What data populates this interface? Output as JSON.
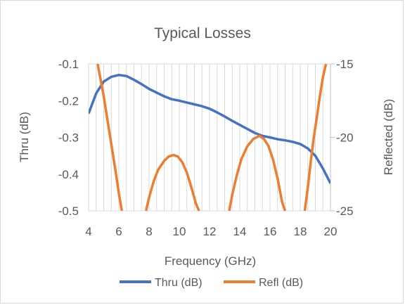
{
  "chart_data": {
    "type": "line",
    "title": "Typical Losses",
    "xlabel": "Frequency (GHz)",
    "ylabel": "Thru (dB)",
    "y2label": "Reflected (dB)",
    "xlim": [
      4,
      20
    ],
    "ylim": [
      -0.5,
      -0.1
    ],
    "y2lim": [
      -25,
      -15
    ],
    "x_ticks": [
      "4",
      "6",
      "8",
      "10",
      "12",
      "14",
      "16",
      "18",
      "20"
    ],
    "y_ticks": [
      "-0.1",
      "-0.2",
      "-0.3",
      "-0.4",
      "-0.5"
    ],
    "y2_ticks": [
      "-15",
      "-20",
      "-25"
    ],
    "grid": "vertical",
    "legend_position": "bottom",
    "series": [
      {
        "name": "Thru (dB)",
        "axis": "left",
        "color": "#4472c4",
        "x": [
          4.0,
          4.5,
          5.0,
          5.5,
          6.0,
          6.5,
          7.0,
          7.5,
          8.0,
          8.5,
          9.0,
          9.5,
          10.0,
          10.5,
          11.0,
          11.5,
          12.0,
          12.5,
          13.0,
          13.5,
          14.0,
          14.5,
          15.0,
          15.5,
          16.0,
          16.5,
          17.0,
          17.5,
          18.0,
          18.5,
          19.0,
          19.5,
          20.0
        ],
        "values": [
          -0.235,
          -0.18,
          -0.148,
          -0.135,
          -0.13,
          -0.133,
          -0.143,
          -0.155,
          -0.168,
          -0.178,
          -0.188,
          -0.196,
          -0.2,
          -0.205,
          -0.21,
          -0.215,
          -0.222,
          -0.232,
          -0.243,
          -0.255,
          -0.266,
          -0.277,
          -0.288,
          -0.296,
          -0.3,
          -0.305,
          -0.308,
          -0.312,
          -0.318,
          -0.33,
          -0.35,
          -0.385,
          -0.425
        ]
      },
      {
        "name": "Refl (dB)",
        "axis": "right",
        "color": "#ed7d31",
        "x": [
          4.6,
          4.8,
          5.0,
          5.2,
          5.4,
          5.6,
          5.8,
          6.0,
          6.2,
          7.8,
          8.0,
          8.3,
          8.6,
          9.0,
          9.3,
          9.6,
          9.9,
          10.2,
          10.5,
          10.8,
          11.1,
          11.3,
          13.3,
          13.5,
          13.8,
          14.1,
          14.5,
          14.9,
          15.3,
          15.6,
          15.9,
          16.2,
          16.5,
          16.8,
          17.0,
          18.3,
          18.5,
          18.7,
          18.9,
          19.1,
          19.3,
          19.5,
          19.7
        ],
        "values": [
          -15.0,
          -16.1,
          -17.2,
          -18.5,
          -19.8,
          -21.1,
          -22.4,
          -23.8,
          -25.0,
          -25.0,
          -24.1,
          -23.0,
          -22.2,
          -21.6,
          -21.3,
          -21.2,
          -21.3,
          -21.7,
          -22.4,
          -23.4,
          -24.5,
          -25.0,
          -25.0,
          -23.9,
          -22.6,
          -21.5,
          -20.6,
          -20.1,
          -19.9,
          -20.1,
          -20.6,
          -21.5,
          -22.8,
          -24.4,
          -25.0,
          -25.0,
          -23.4,
          -21.6,
          -20.0,
          -18.6,
          -17.2,
          -15.9,
          -15.0
        ]
      }
    ]
  }
}
